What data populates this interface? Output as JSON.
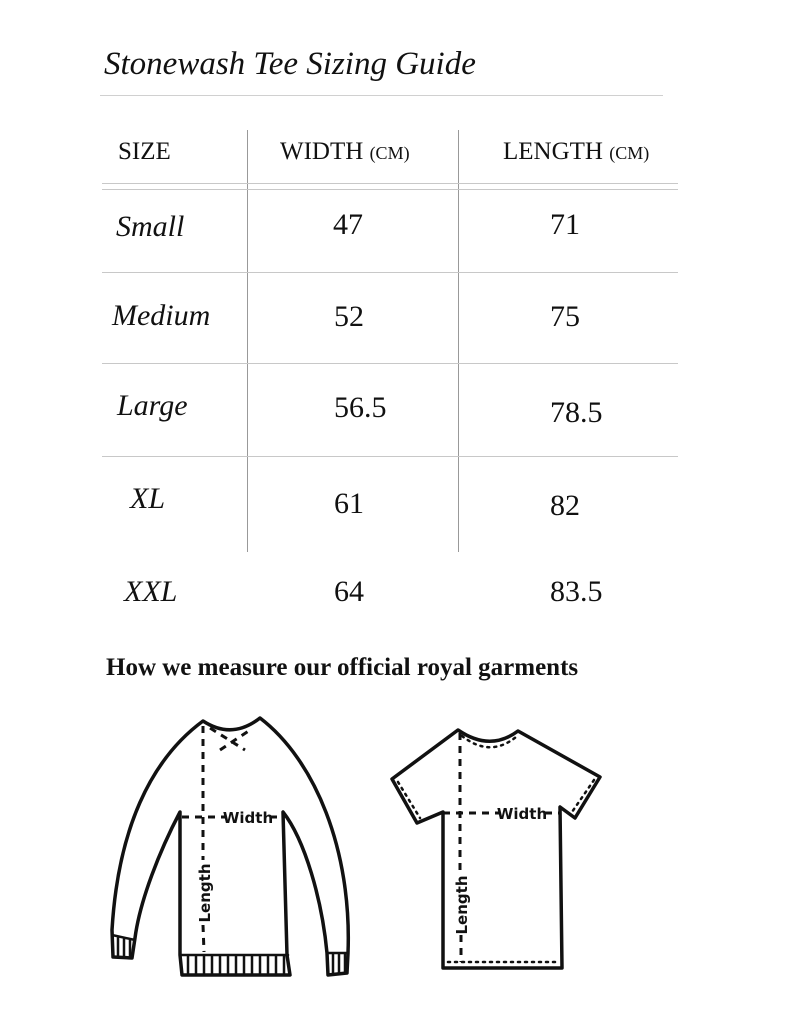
{
  "title": "Stonewash Tee Sizing Guide",
  "table": {
    "headers": [
      {
        "label": "SIZE",
        "unit": ""
      },
      {
        "label": "WIDTH",
        "unit": "(CM)"
      },
      {
        "label": "LENGTH",
        "unit": "(CM)"
      }
    ],
    "rows": [
      {
        "size": "Small",
        "width": "47",
        "length": "71"
      },
      {
        "size": "Medium",
        "width": "52",
        "length": "75"
      },
      {
        "size": "Large",
        "width": "56.5",
        "length": "78.5"
      },
      {
        "size": "XL",
        "width": "61",
        "length": "82"
      },
      {
        "size": "XXL",
        "width": "64",
        "length": "83.5"
      }
    ]
  },
  "subheading": "How we measure our official royal garments",
  "diagrams": {
    "sweater": {
      "width_label": "Width",
      "length_label": "Length"
    },
    "tee": {
      "width_label": "Width",
      "length_label": "Length"
    }
  }
}
